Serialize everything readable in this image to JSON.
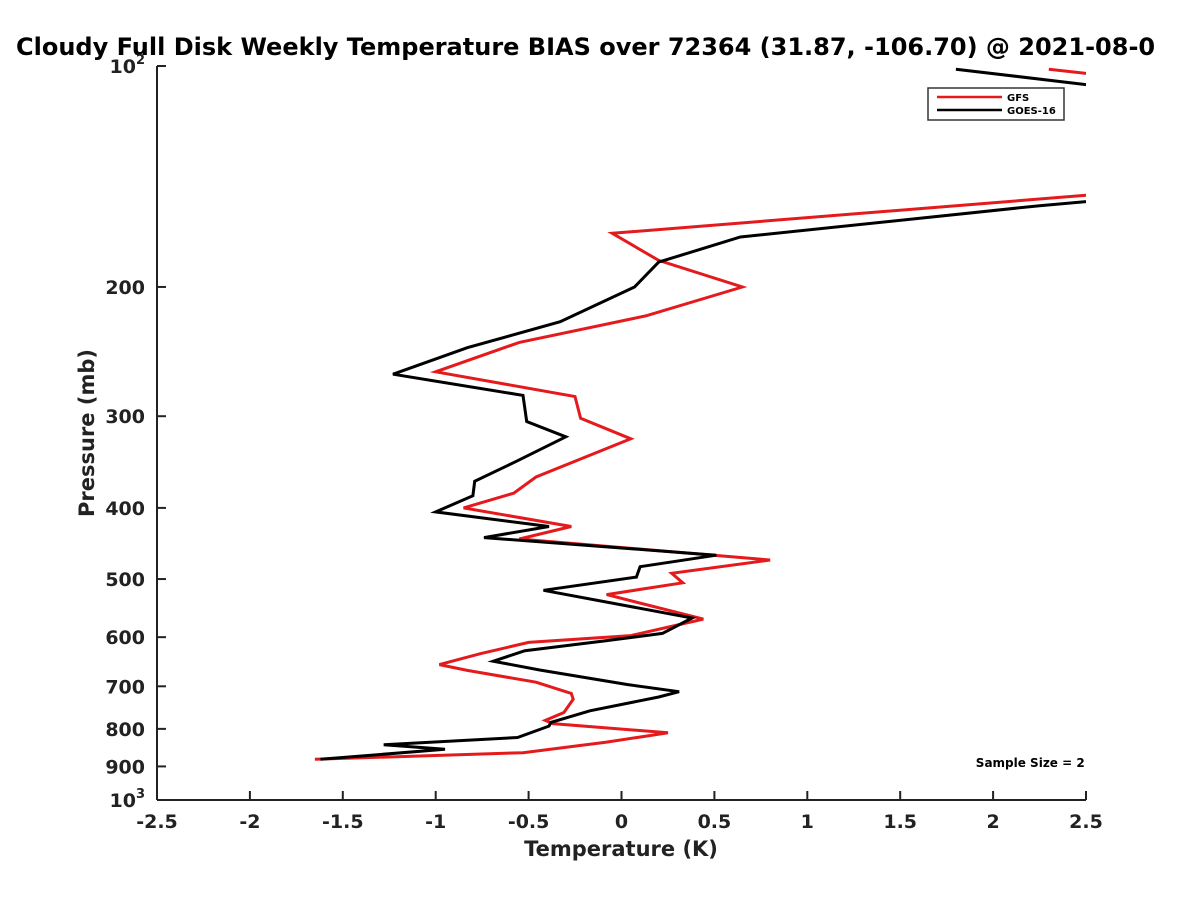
{
  "chart_data": {
    "type": "line",
    "title": "Cloudy Full Disk Weekly Temperature BIAS over 72364 (31.87, -106.70) @ 2021-08-0",
    "xlabel": "Temperature (K)",
    "ylabel": "Pressure (mb)",
    "xlim": [
      -2.5,
      2.5
    ],
    "ylim": [
      100,
      1000
    ],
    "yscale": "log",
    "y_reversed": true,
    "xticks": [
      -2.5,
      -2,
      -1.5,
      -1,
      -0.5,
      0,
      0.5,
      1,
      1.5,
      2,
      2.5
    ],
    "xtick_labels": [
      "-2.5",
      "-2",
      "-1.5",
      "-1",
      "-0.5",
      "0",
      "0.5",
      "1",
      "1.5",
      "2",
      "2.5"
    ],
    "yticks": [
      {
        "value": 100,
        "base": "10",
        "exp": "2"
      },
      {
        "value": 200,
        "label": "200"
      },
      {
        "value": 300,
        "label": "300"
      },
      {
        "value": 400,
        "label": "400"
      },
      {
        "value": 500,
        "label": "500"
      },
      {
        "value": 600,
        "label": "600"
      },
      {
        "value": 700,
        "label": "700"
      },
      {
        "value": 800,
        "label": "800"
      },
      {
        "value": 900,
        "label": "900"
      },
      {
        "value": 1000,
        "base": "10",
        "exp": "3"
      }
    ],
    "grid": false,
    "legend_position": "top-right",
    "series": [
      {
        "name": "GFS",
        "color": "#e41a1c",
        "points": [
          [
            2.3,
            101
          ],
          [
            2.6,
            103
          ],
          [
            2.5,
            150
          ],
          [
            -0.05,
            169
          ],
          [
            0.2,
            184
          ],
          [
            0.65,
            200
          ],
          [
            0.13,
            219
          ],
          [
            -0.55,
            238
          ],
          [
            -1.0,
            261
          ],
          [
            -0.25,
            282
          ],
          [
            -0.22,
            302
          ],
          [
            0.05,
            322
          ],
          [
            -0.46,
            363
          ],
          [
            -0.58,
            382
          ],
          [
            -0.85,
            400
          ],
          [
            -0.27,
            424
          ],
          [
            -0.55,
            441
          ],
          [
            0.8,
            471
          ],
          [
            0.27,
            491
          ],
          [
            0.33,
            506
          ],
          [
            -0.08,
            525
          ],
          [
            0.44,
            567
          ],
          [
            0.05,
            597
          ],
          [
            -0.5,
            610
          ],
          [
            -0.76,
            632
          ],
          [
            -0.98,
            654
          ],
          [
            -0.83,
            666
          ],
          [
            -0.46,
            691
          ],
          [
            -0.27,
            716
          ],
          [
            -0.26,
            729
          ],
          [
            -0.31,
            760
          ],
          [
            -0.41,
            779
          ],
          [
            -0.37,
            787
          ],
          [
            0.25,
            810
          ],
          [
            -0.08,
            834
          ],
          [
            -0.53,
            862
          ],
          [
            -1.65,
            880
          ]
        ]
      },
      {
        "name": "GOES-16",
        "color": "#000000",
        "points": [
          [
            1.8,
            101
          ],
          [
            2.5,
            106
          ],
          [
            2.5,
            153
          ],
          [
            2.25,
            155
          ],
          [
            0.64,
            171
          ],
          [
            0.2,
            185
          ],
          [
            0.07,
            200
          ],
          [
            -0.33,
            223
          ],
          [
            -0.83,
            242
          ],
          [
            -1.23,
            263
          ],
          [
            -0.53,
            281
          ],
          [
            -0.51,
            305
          ],
          [
            -0.3,
            320
          ],
          [
            -0.57,
            346
          ],
          [
            -0.79,
            368
          ],
          [
            -0.8,
            385
          ],
          [
            -1.0,
            405
          ],
          [
            -0.39,
            424
          ],
          [
            -0.74,
            439
          ],
          [
            0.51,
            464
          ],
          [
            0.1,
            481
          ],
          [
            0.08,
            497
          ],
          [
            -0.42,
            518
          ],
          [
            0.38,
            565
          ],
          [
            0.22,
            593
          ],
          [
            -0.09,
            607
          ],
          [
            -0.52,
            626
          ],
          [
            -0.69,
            647
          ],
          [
            -0.44,
            665
          ],
          [
            0.03,
            696
          ],
          [
            0.31,
            712
          ],
          [
            0.2,
            724
          ],
          [
            -0.17,
            756
          ],
          [
            -0.38,
            784
          ],
          [
            -0.39,
            793
          ],
          [
            -0.56,
            822
          ],
          [
            -1.28,
            841
          ],
          [
            -0.95,
            853
          ],
          [
            -1.62,
            880
          ]
        ]
      }
    ],
    "annotations": [
      {
        "text": "Sample Size = 2",
        "x": 2.2,
        "y": 902
      }
    ]
  }
}
